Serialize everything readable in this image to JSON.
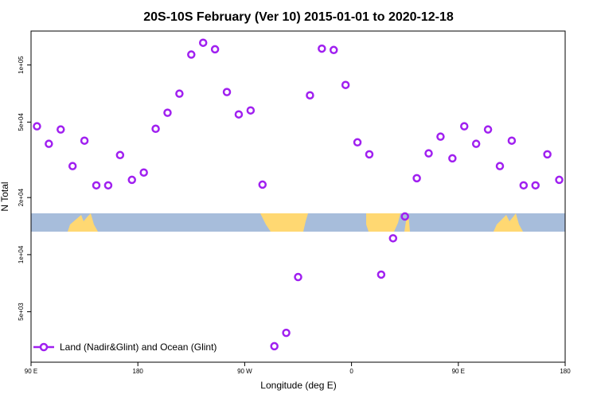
{
  "chart_data": {
    "type": "scatter",
    "title": "20S-10S February (Ver 10)   2015-01-01 to 2020-12-18",
    "xlabel": "Longitude (deg E)",
    "ylabel": "N Total",
    "y_scale": "log",
    "xlim": [
      90,
      540
    ],
    "ylim": [
      2710,
      151000
    ],
    "x_ticks": [
      {
        "value": 90,
        "label": "90 E"
      },
      {
        "value": 180,
        "label": "180"
      },
      {
        "value": 270,
        "label": "90 W"
      },
      {
        "value": 360,
        "label": "0"
      },
      {
        "value": 450,
        "label": "90 E"
      },
      {
        "value": 540,
        "label": "180"
      }
    ],
    "y_ticks": [
      {
        "value": 5000,
        "label": "5e+03"
      },
      {
        "value": 10000,
        "label": "1e+04"
      },
      {
        "value": 20000,
        "label": "2e+04"
      },
      {
        "value": 50000,
        "label": "5e+04"
      },
      {
        "value": 100000,
        "label": "1e+05"
      }
    ],
    "grid": false,
    "legend_position": "bottom-left",
    "series": [
      {
        "name": "Land (Nadir&Glint) and Ocean (Glint)",
        "color": "#a020f0",
        "x": [
          95,
          105,
          115,
          125,
          135,
          145,
          155,
          165,
          175,
          185,
          195,
          205,
          215,
          225,
          235,
          245,
          255,
          265,
          275,
          285,
          295,
          305,
          315,
          325,
          335,
          345,
          355,
          365,
          375,
          385,
          395,
          405,
          415,
          425,
          435,
          445,
          455,
          465,
          475,
          485,
          495,
          505,
          515,
          525,
          535
        ],
        "y": [
          47500,
          38400,
          45700,
          29300,
          39900,
          23200,
          23200,
          33500,
          24800,
          27100,
          46100,
          56000,
          70600,
          113500,
          131000,
          121000,
          72000,
          54900,
          57600,
          23400,
          3290,
          3870,
          7620,
          69200,
          122000,
          120000,
          78500,
          39100,
          33800,
          7850,
          12200,
          15900,
          25300,
          34200,
          41900,
          32200,
          47500,
          38400,
          45700,
          29300,
          39900,
          23200,
          23200,
          33800,
          24800
        ]
      }
    ],
    "map_strip": {
      "ocean_color": "#a7bddb",
      "land_color": "#ffd872"
    }
  }
}
